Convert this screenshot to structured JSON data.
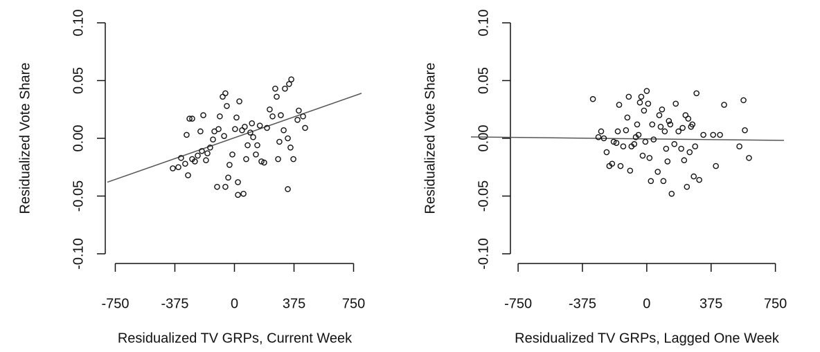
{
  "chart_data": [
    {
      "type": "scatter",
      "x_label": "Residualized TV GRPs, Current Week",
      "y_label": "Residualized Vote Share",
      "xlim": [
        -800,
        800
      ],
      "ylim": [
        -0.1,
        0.1
      ],
      "xticks": [
        -750,
        -375,
        0,
        375,
        750
      ],
      "yticks": [
        {
          "value": -0.1,
          "label": "-0.10"
        },
        {
          "value": -0.05,
          "label": "-0.05"
        },
        {
          "value": 0,
          "label": "0.00"
        },
        {
          "value": 0.05,
          "label": "0.05"
        },
        {
          "value": 0.1,
          "label": "0.10"
        }
      ],
      "color": "#111111",
      "fit_color": "#555555",
      "x": [
        -388,
        -353,
        -336,
        -310,
        -292,
        -266,
        -249,
        -301,
        -283,
        -266,
        -214,
        -196,
        -231,
        -205,
        -179,
        -153,
        -126,
        -100,
        -92,
        -74,
        -65,
        -57,
        -48,
        -39,
        -31,
        -13,
        4,
        13,
        22,
        31,
        48,
        65,
        74,
        83,
        100,
        118,
        135,
        144,
        170,
        187,
        205,
        222,
        240,
        257,
        266,
        275,
        283,
        310,
        318,
        336,
        344,
        353,
        371,
        397,
        358,
        292,
        336,
        22,
        -109,
        -57,
        57,
        432,
        445,
        405,
        -135,
        -170,
        110,
        160
      ],
      "y": [
        -0.026,
        -0.025,
        -0.017,
        -0.022,
        -0.032,
        -0.018,
        -0.02,
        0.003,
        0.017,
        0.017,
        0.006,
        0.02,
        -0.015,
        -0.011,
        -0.019,
        -0.008,
        0.006,
        0.008,
        0.019,
        0.036,
        0.002,
        0.039,
        0.028,
        -0.034,
        -0.023,
        -0.014,
        0.008,
        0.018,
        -0.038,
        0.032,
        0.007,
        0.01,
        -0.018,
        -0.006,
        0.005,
        0.001,
        -0.014,
        -0.006,
        -0.02,
        -0.021,
        0.009,
        0.025,
        0.019,
        0.043,
        0.036,
        -0.018,
        -0.003,
        0.007,
        0.043,
        0,
        0.047,
        -0.008,
        -0.018,
        0.016,
        0.051,
        0.02,
        -0.044,
        -0.049,
        -0.042,
        -0.042,
        -0.048,
        0.019,
        0.009,
        0.024,
        -0.001,
        -0.013,
        0.013,
        0.011
      ],
      "fit": {
        "x": [
          -800,
          800
        ],
        "y": [
          -0.038,
          0.039
        ]
      }
    },
    {
      "type": "scatter",
      "x_label": "Residualized TV GRPs, Lagged One Week",
      "y_label": "Residualized Vote Share",
      "xlim": [
        -1025,
        800
      ],
      "ylim": [
        -0.1,
        0.1
      ],
      "xticks": [
        -750,
        -375,
        0,
        375,
        750
      ],
      "yticks": [
        {
          "value": -0.1,
          "label": "-0.10"
        },
        {
          "value": -0.05,
          "label": "-0.05"
        },
        {
          "value": 0,
          "label": "0.00"
        },
        {
          "value": 0.05,
          "label": "0.05"
        },
        {
          "value": 0.1,
          "label": "0.10"
        }
      ],
      "color": "#111111",
      "fit_color": "#555555",
      "x": [
        -314,
        -282,
        -266,
        -250,
        -234,
        -218,
        -202,
        -193,
        -177,
        -169,
        -161,
        -153,
        -137,
        -121,
        -113,
        -105,
        -97,
        -89,
        -73,
        -64,
        -56,
        -48,
        -40,
        -32,
        -24,
        -16,
        -8,
        0,
        8,
        16,
        24,
        32,
        40,
        64,
        73,
        81,
        89,
        97,
        105,
        113,
        121,
        129,
        137,
        145,
        161,
        169,
        185,
        201,
        209,
        218,
        226,
        234,
        242,
        250,
        258,
        266,
        274,
        282,
        290,
        306,
        330,
        387,
        403,
        427,
        451,
        540,
        564,
        572,
        596
      ],
      "y": [
        0.034,
        0.001,
        0.006,
        0,
        -0.012,
        -0.024,
        -0.022,
        -0.003,
        -0.004,
        0.006,
        0.029,
        -0.024,
        -0.007,
        0.007,
        0.018,
        0.036,
        -0.028,
        -0.007,
        -0.005,
        0.001,
        0.012,
        0.003,
        0.031,
        0.036,
        -0.015,
        0.024,
        -0.003,
        0.041,
        0.03,
        -0.017,
        -0.037,
        0.012,
        -0.001,
        -0.029,
        0.02,
        0.01,
        0.025,
        -0.037,
        0.006,
        -0.009,
        -0.02,
        0.015,
        0.012,
        -0.048,
        -0.005,
        0.03,
        0.006,
        -0.009,
        0.009,
        -0.019,
        0.02,
        -0.042,
        0.017,
        -0.012,
        0.01,
        0.012,
        -0.033,
        -0.007,
        0.039,
        -0.036,
        0.003,
        0.003,
        -0.024,
        0.003,
        0.029,
        -0.007,
        0.033,
        0.007,
        -0.017
      ],
      "fit": {
        "x": [
          -1025,
          800
        ],
        "y": [
          0.0012,
          -0.0018
        ]
      }
    }
  ]
}
